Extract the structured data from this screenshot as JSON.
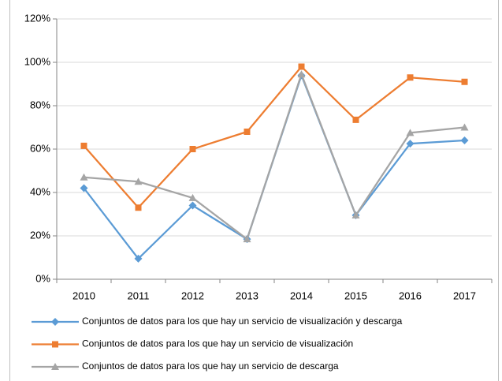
{
  "chart_data": {
    "type": "line",
    "categories": [
      "2010",
      "2011",
      "2012",
      "2013",
      "2014",
      "2015",
      "2016",
      "2017"
    ],
    "series": [
      {
        "name": "Conjuntos de datos para los que hay un servicio de visualización y descarga",
        "color": "#5b9bd5",
        "marker": "diamond",
        "values": [
          42,
          9.5,
          34,
          18.5,
          94,
          29.5,
          62.5,
          64
        ]
      },
      {
        "name": "Conjuntos de datos para los que hay un servicio de visualización",
        "color": "#ed7d31",
        "marker": "square",
        "values": [
          61.5,
          33,
          60,
          68,
          98,
          73.5,
          93,
          91
        ]
      },
      {
        "name": "Conjuntos de datos para los que hay un servicio de descarga",
        "color": "#a5a5a5",
        "marker": "triangle",
        "values": [
          47,
          45,
          37.5,
          18.5,
          94.5,
          29.5,
          67.5,
          70
        ]
      }
    ],
    "ylim": [
      0,
      120
    ],
    "yticks": [
      {
        "value": 0,
        "label": "0%"
      },
      {
        "value": 20,
        "label": "20%"
      },
      {
        "value": 40,
        "label": "40%"
      },
      {
        "value": 60,
        "label": "60%"
      },
      {
        "value": 80,
        "label": "80%"
      },
      {
        "value": 100,
        "label": "100%"
      },
      {
        "value": 120,
        "label": "120%"
      }
    ],
    "grid": true,
    "legend": "bottom"
  }
}
